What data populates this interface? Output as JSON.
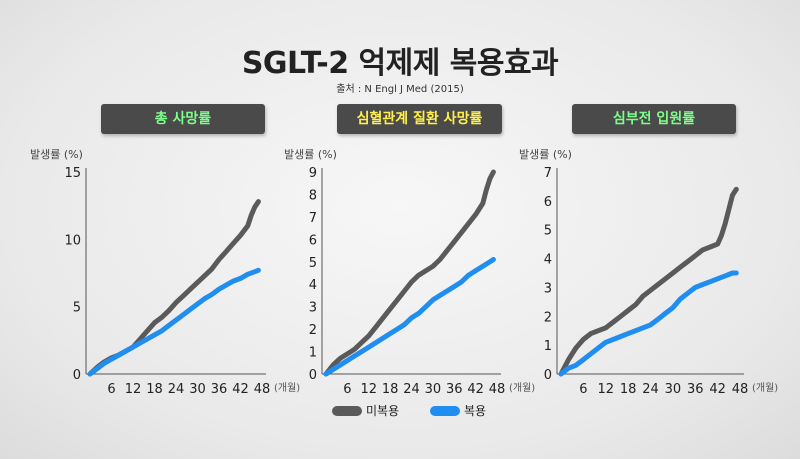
{
  "title": "SGLT-2 억제제 복용효과",
  "source": "출처 : N Engl J  Med (2015)",
  "legend": {
    "series1_label": "미복용",
    "series1_color": "#5a5a5a",
    "series2_label": "복용",
    "series2_color": "#1f8ef0"
  },
  "chart_data": [
    {
      "type": "line",
      "title": "총 사망률",
      "title_color": "#7cff8a",
      "ylabel": "발생률 (%)",
      "xlabel": "(개월)",
      "ylim": [
        0,
        15
      ],
      "yticks": [
        0,
        5,
        10,
        15
      ],
      "xlim": [
        0,
        48
      ],
      "xticks": [
        6,
        12,
        18,
        24,
        30,
        36,
        42,
        48
      ],
      "series": [
        {
          "name": "미복용",
          "color": "#5a5a5a",
          "x": [
            0,
            2,
            4,
            6,
            8,
            10,
            12,
            14,
            16,
            18,
            20,
            22,
            24,
            26,
            28,
            30,
            32,
            34,
            36,
            38,
            40,
            42,
            44,
            45,
            46,
            47
          ],
          "y": [
            0,
            0.5,
            0.9,
            1.2,
            1.4,
            1.7,
            2.0,
            2.6,
            3.2,
            3.8,
            4.2,
            4.7,
            5.3,
            5.8,
            6.3,
            6.8,
            7.3,
            7.8,
            8.5,
            9.1,
            9.7,
            10.3,
            11.0,
            11.8,
            12.4,
            12.8
          ]
        },
        {
          "name": "복용",
          "color": "#1f8ef0",
          "x": [
            0,
            2,
            4,
            6,
            8,
            10,
            12,
            14,
            16,
            18,
            20,
            22,
            24,
            26,
            28,
            30,
            32,
            34,
            36,
            38,
            40,
            42,
            44,
            46,
            47
          ],
          "y": [
            0,
            0.4,
            0.8,
            1.1,
            1.4,
            1.7,
            2.0,
            2.3,
            2.6,
            2.9,
            3.2,
            3.6,
            4.0,
            4.4,
            4.8,
            5.2,
            5.6,
            5.9,
            6.3,
            6.6,
            6.9,
            7.1,
            7.4,
            7.6,
            7.7
          ]
        }
      ]
    },
    {
      "type": "line",
      "title": "심혈관계 질환 사망률",
      "title_color": "#fff14a",
      "ylabel": "발생률 (%)",
      "xlabel": "(개월)",
      "ylim": [
        0,
        9
      ],
      "yticks": [
        0,
        1,
        2,
        3,
        4,
        5,
        6,
        7,
        8,
        9
      ],
      "xlim": [
        0,
        48
      ],
      "xticks": [
        6,
        12,
        18,
        24,
        30,
        36,
        42,
        48
      ],
      "series": [
        {
          "name": "미복용",
          "color": "#5a5a5a",
          "x": [
            0,
            2,
            4,
            6,
            8,
            10,
            12,
            14,
            16,
            18,
            20,
            22,
            24,
            26,
            28,
            30,
            32,
            34,
            36,
            38,
            40,
            42,
            44,
            45,
            46,
            47
          ],
          "y": [
            0,
            0.4,
            0.7,
            0.9,
            1.1,
            1.4,
            1.7,
            2.1,
            2.5,
            2.9,
            3.3,
            3.7,
            4.1,
            4.4,
            4.6,
            4.8,
            5.1,
            5.5,
            5.9,
            6.3,
            6.7,
            7.1,
            7.6,
            8.2,
            8.7,
            9.0
          ]
        },
        {
          "name": "복용",
          "color": "#1f8ef0",
          "x": [
            0,
            2,
            4,
            6,
            8,
            10,
            12,
            14,
            16,
            18,
            20,
            22,
            24,
            26,
            28,
            30,
            32,
            34,
            36,
            38,
            40,
            42,
            44,
            46,
            47
          ],
          "y": [
            0,
            0.2,
            0.4,
            0.6,
            0.8,
            1.0,
            1.2,
            1.4,
            1.6,
            1.8,
            2.0,
            2.2,
            2.5,
            2.7,
            3.0,
            3.3,
            3.5,
            3.7,
            3.9,
            4.1,
            4.4,
            4.6,
            4.8,
            5.0,
            5.1
          ]
        }
      ]
    },
    {
      "type": "line",
      "title": "심부전 입원률",
      "title_color": "#7cff8a",
      "ylabel": "발생률 (%)",
      "xlabel": "(개월)",
      "ylim": [
        0,
        7
      ],
      "yticks": [
        0,
        1,
        2,
        3,
        4,
        5,
        6,
        7
      ],
      "xlim": [
        0,
        48
      ],
      "xticks": [
        6,
        12,
        18,
        24,
        30,
        36,
        42,
        48
      ],
      "series": [
        {
          "name": "미복용",
          "color": "#5a5a5a",
          "x": [
            0,
            2,
            4,
            6,
            8,
            10,
            12,
            14,
            16,
            18,
            20,
            22,
            24,
            26,
            28,
            30,
            32,
            34,
            36,
            38,
            40,
            42,
            43,
            44,
            45,
            46,
            47
          ],
          "y": [
            0,
            0.5,
            0.9,
            1.2,
            1.4,
            1.5,
            1.6,
            1.8,
            2.0,
            2.2,
            2.4,
            2.7,
            2.9,
            3.1,
            3.3,
            3.5,
            3.7,
            3.9,
            4.1,
            4.3,
            4.4,
            4.5,
            4.8,
            5.2,
            5.7,
            6.2,
            6.4
          ]
        },
        {
          "name": "복용",
          "color": "#1f8ef0",
          "x": [
            0,
            2,
            4,
            6,
            8,
            10,
            12,
            14,
            16,
            18,
            20,
            22,
            24,
            26,
            28,
            30,
            32,
            34,
            36,
            38,
            40,
            42,
            44,
            46,
            47
          ],
          "y": [
            0,
            0.2,
            0.3,
            0.5,
            0.7,
            0.9,
            1.1,
            1.2,
            1.3,
            1.4,
            1.5,
            1.6,
            1.7,
            1.9,
            2.1,
            2.3,
            2.6,
            2.8,
            3.0,
            3.1,
            3.2,
            3.3,
            3.4,
            3.5,
            3.5
          ]
        }
      ]
    }
  ]
}
